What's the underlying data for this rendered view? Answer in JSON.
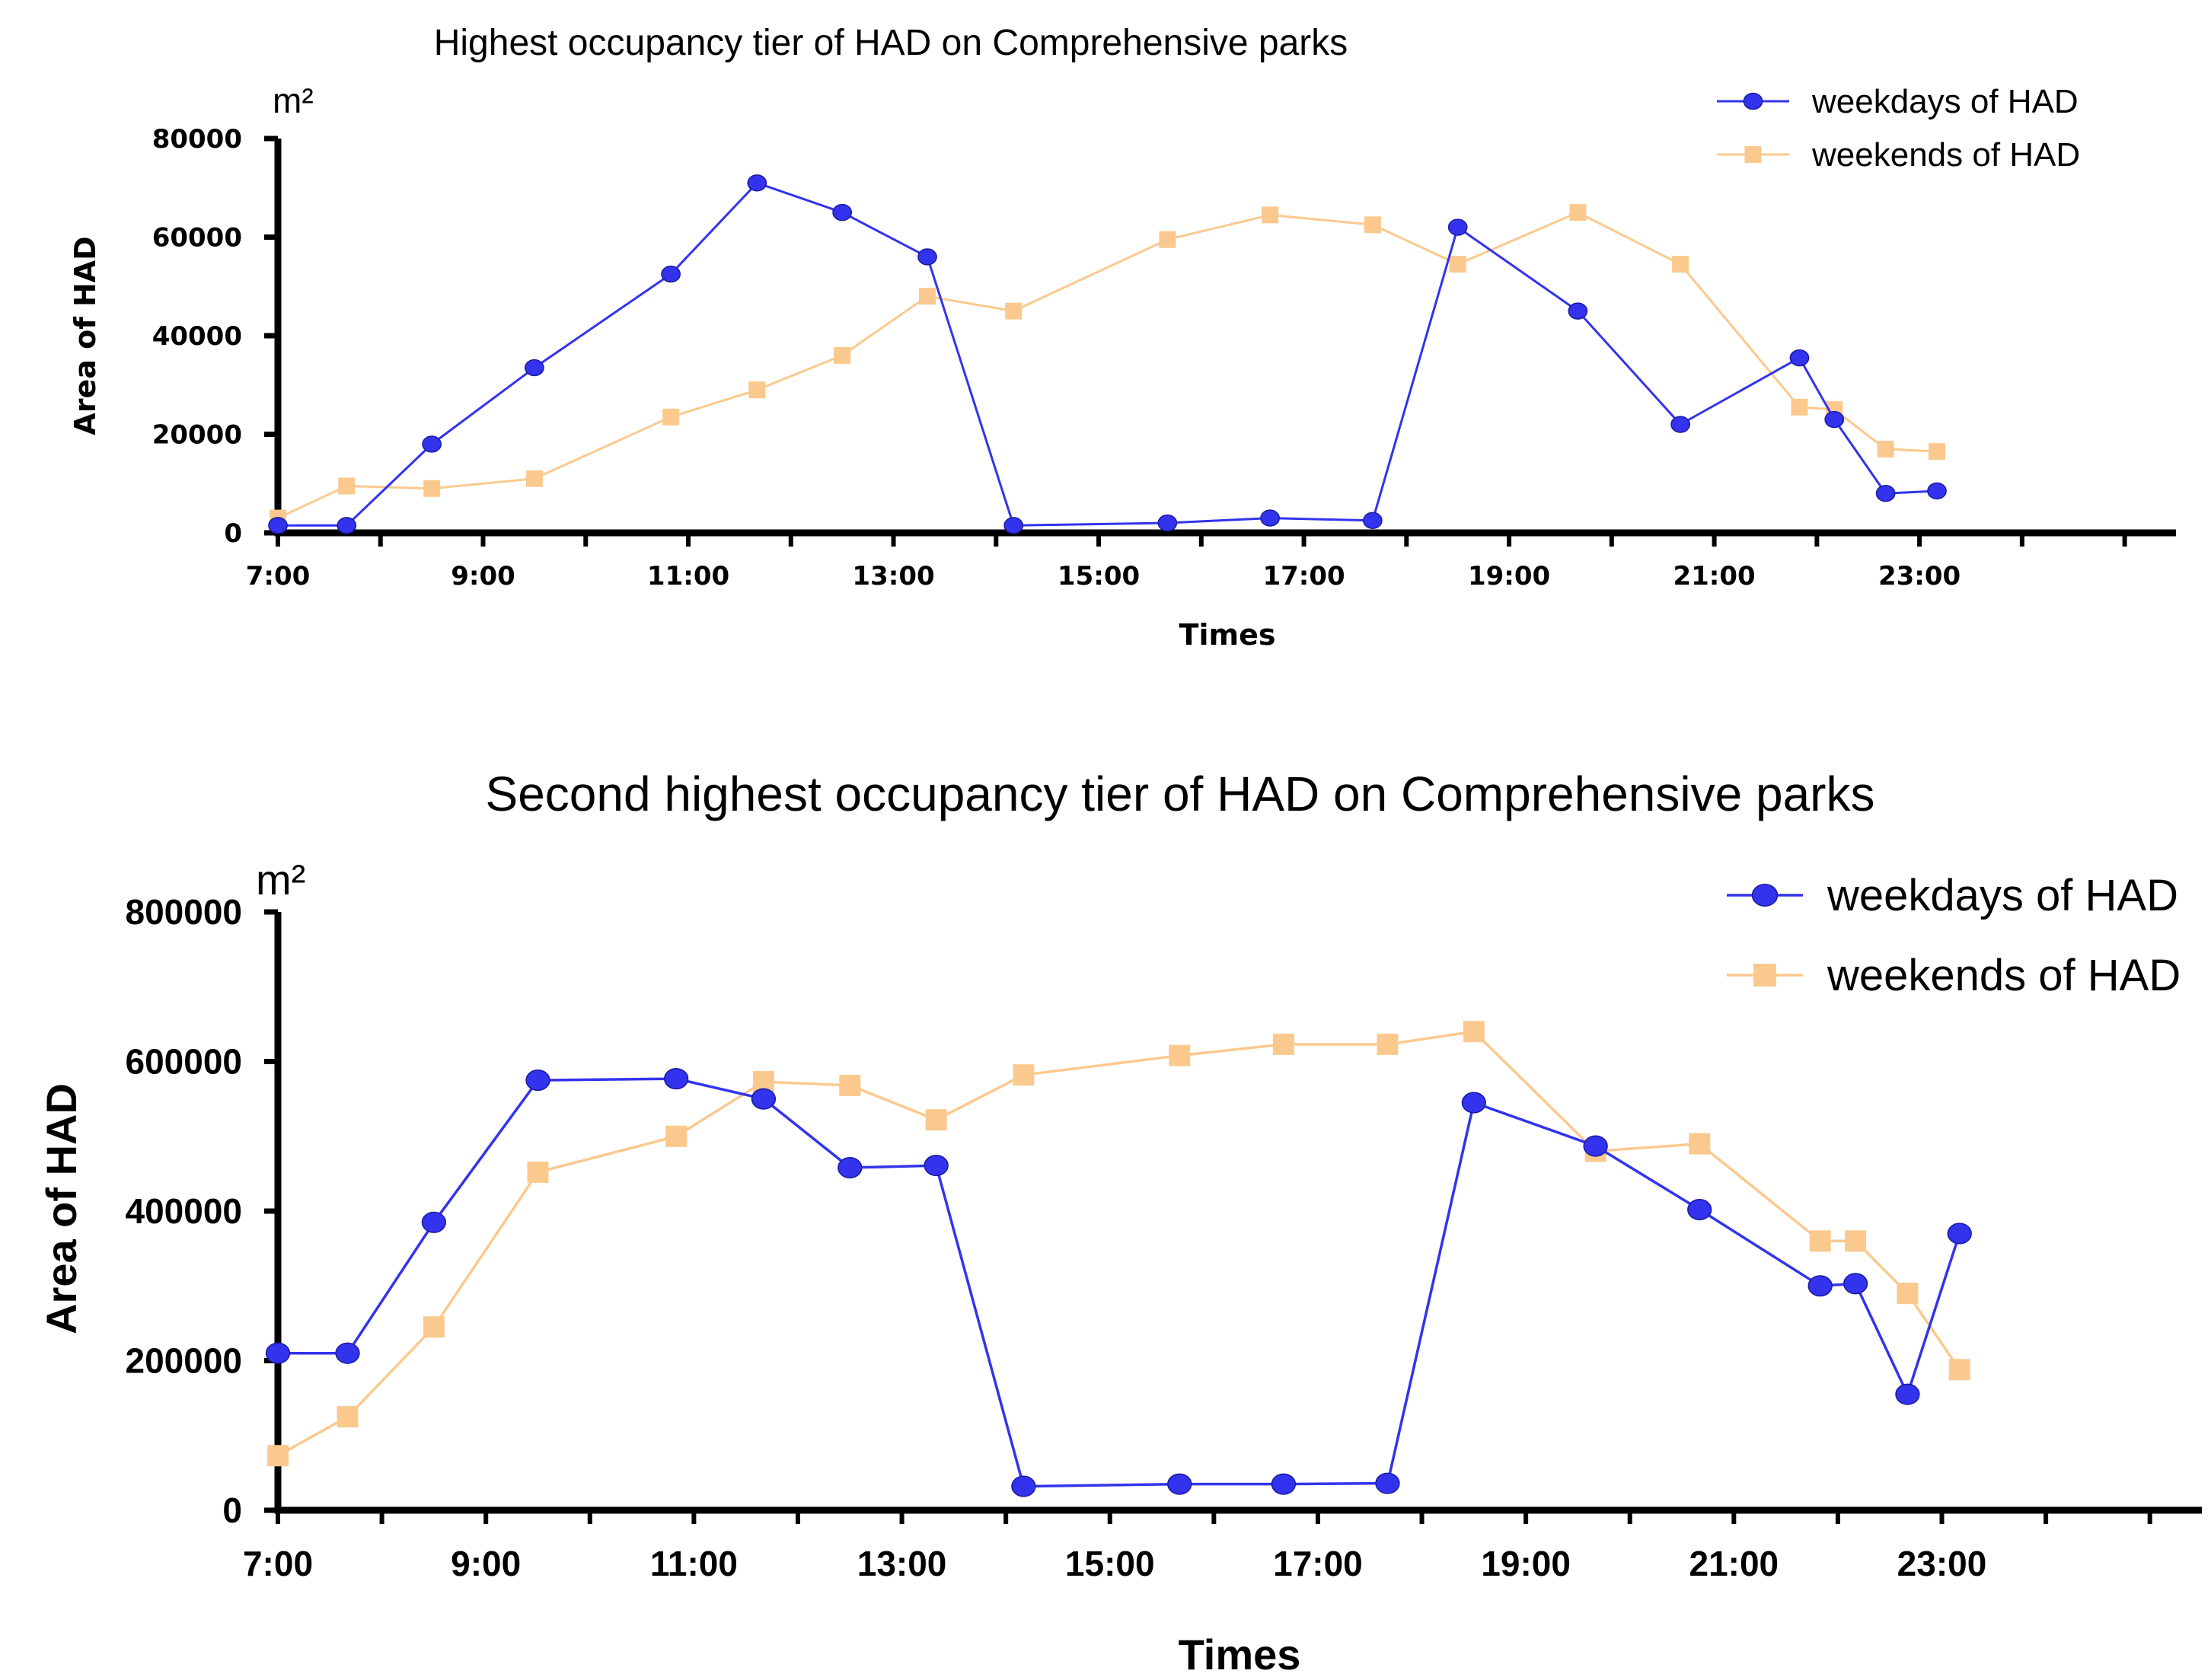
{
  "chart_data": [
    {
      "type": "line",
      "title": "Highest occupancy tier of HAD on Comprehensive parks",
      "xlabel": "Times",
      "ylabel": "Area of HAD",
      "unit": "m²",
      "xlim": [
        7.0,
        25.5
      ],
      "ylim": [
        0,
        80000
      ],
      "x_ticks": [
        "7:00",
        "9:00",
        "11:00",
        "13:00",
        "15:00",
        "17:00",
        "19:00",
        "21:00",
        "23:00"
      ],
      "y_ticks": [
        "0",
        "20000",
        "40000",
        "60000",
        "80000"
      ],
      "legend_position": "top-right",
      "series": [
        {
          "name": "weekdays of HAD",
          "color": "#3333ee",
          "marker": "circle",
          "x": [
            7.0,
            7.67,
            8.5,
            9.5,
            10.83,
            11.67,
            12.5,
            13.33,
            14.17,
            15.67,
            16.67,
            17.67,
            18.5,
            19.67,
            20.67,
            21.83,
            22.17,
            22.67,
            23.17
          ],
          "y": [
            1500,
            1500,
            18000,
            33500,
            52500,
            71000,
            65000,
            56000,
            1500,
            2000,
            3000,
            2500,
            62000,
            45000,
            22000,
            35500,
            23000,
            8000,
            8500
          ]
        },
        {
          "name": "weekends of HAD",
          "color": "#fbc98e",
          "marker": "square",
          "x": [
            7.0,
            7.67,
            8.5,
            9.5,
            10.83,
            11.67,
            12.5,
            13.33,
            14.17,
            15.67,
            16.67,
            17.67,
            18.5,
            19.67,
            20.67,
            21.83,
            22.17,
            22.67,
            23.17
          ],
          "y": [
            3000,
            9500,
            9000,
            11000,
            23500,
            29000,
            36000,
            48000,
            45000,
            59500,
            64500,
            62500,
            54500,
            65000,
            54500,
            25500,
            25000,
            17000,
            16500
          ]
        }
      ]
    },
    {
      "type": "line",
      "title": "Second highest occupancy tier of HAD on Comprehensive parks",
      "xlabel": "Times",
      "ylabel": "Area of HAD",
      "unit": "m²",
      "xlim": [
        7.0,
        25.5
      ],
      "ylim": [
        0,
        800000
      ],
      "x_ticks": [
        "7:00",
        "9:00",
        "11:00",
        "13:00",
        "15:00",
        "17:00",
        "19:00",
        "21:00",
        "23:00"
      ],
      "y_ticks": [
        "0",
        "200000",
        "400000",
        "600000",
        "800000"
      ],
      "legend_position": "top-right",
      "series": [
        {
          "name": "weekdays of HAD",
          "color": "#3333ee",
          "marker": "circle",
          "x": [
            7.0,
            7.67,
            8.5,
            9.5,
            10.83,
            11.67,
            12.5,
            13.33,
            14.17,
            15.67,
            16.67,
            17.67,
            18.5,
            19.67,
            20.67,
            21.83,
            22.17,
            22.67,
            23.17
          ],
          "y": [
            210000,
            210000,
            385000,
            575000,
            577000,
            550000,
            458000,
            461000,
            32000,
            35000,
            35000,
            36000,
            545000,
            487000,
            402000,
            300000,
            303000,
            155000,
            370000
          ]
        },
        {
          "name": "weekends of HAD",
          "color": "#fbc98e",
          "marker": "square",
          "x": [
            7.0,
            7.67,
            8.5,
            9.5,
            10.83,
            11.67,
            12.5,
            13.33,
            14.17,
            15.67,
            16.67,
            17.67,
            18.5,
            19.67,
            20.67,
            21.83,
            22.17,
            22.67,
            23.17
          ],
          "y": [
            73000,
            125000,
            245000,
            452000,
            500000,
            573000,
            568000,
            522000,
            582000,
            608000,
            623000,
            623000,
            640000,
            480000,
            490000,
            360000,
            360000,
            290000,
            188000
          ]
        }
      ]
    }
  ]
}
